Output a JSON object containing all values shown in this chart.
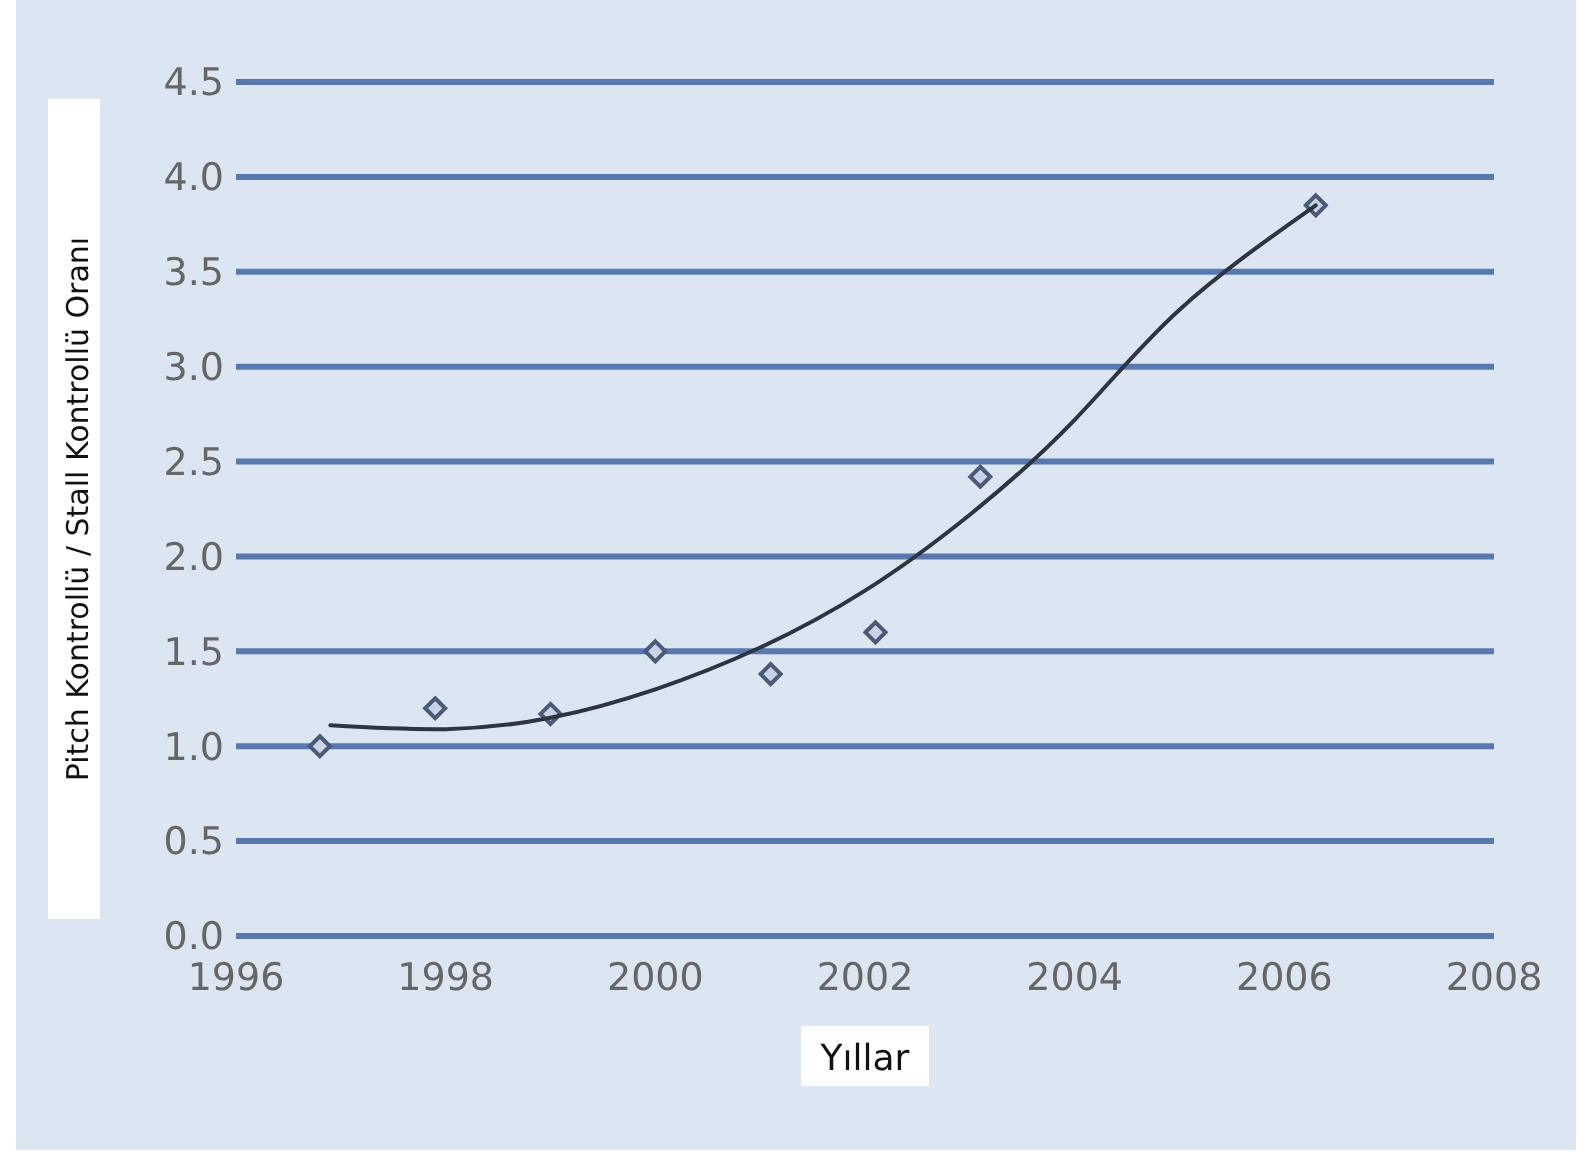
{
  "chart_data": {
    "type": "scatter",
    "xlabel": "Yıllar",
    "ylabel": "Pitch Kontrollü / Stall Kontrollü Oranı",
    "xlim": [
      1996,
      2008
    ],
    "xticks": [
      1996,
      1998,
      2000,
      2002,
      2004,
      2006,
      2008
    ],
    "ylim": [
      0,
      4.5
    ],
    "yticks": [
      {
        "value": 0,
        "label": "0.0"
      },
      {
        "value": 0.5,
        "label": "0.5"
      },
      {
        "value": 1,
        "label": "1.0"
      },
      {
        "value": 1.5,
        "label": "1.5"
      },
      {
        "value": 2,
        "label": "2.0"
      },
      {
        "value": 2.5,
        "label": "2.5"
      },
      {
        "value": 3,
        "label": "3.0"
      },
      {
        "value": 3.5,
        "label": "3.5"
      },
      {
        "value": 4,
        "label": "4.0"
      },
      {
        "value": 4.5,
        "label": "4.5"
      }
    ],
    "grid": "y",
    "series": [
      {
        "color": "#4a5a78",
        "marker": "diamond",
        "x": [
          1996.8,
          1997.9,
          1999.0,
          2000.0,
          2001.1,
          2002.1,
          2003.1,
          2006.3
        ],
        "values": [
          1.0,
          1.2,
          1.17,
          1.5,
          1.38,
          1.6,
          2.42,
          3.85
        ]
      },
      {
        "type": "line",
        "color": "#2e3440",
        "marker": "none",
        "line_style": "solid",
        "x": [
          1996.9,
          1998,
          1999,
          2000,
          2001,
          2002,
          2003,
          2004,
          2005,
          2006.3
        ],
        "values": [
          1.11,
          1.09,
          1.15,
          1.3,
          1.52,
          1.82,
          2.22,
          2.72,
          3.3,
          3.85
        ]
      }
    ]
  }
}
